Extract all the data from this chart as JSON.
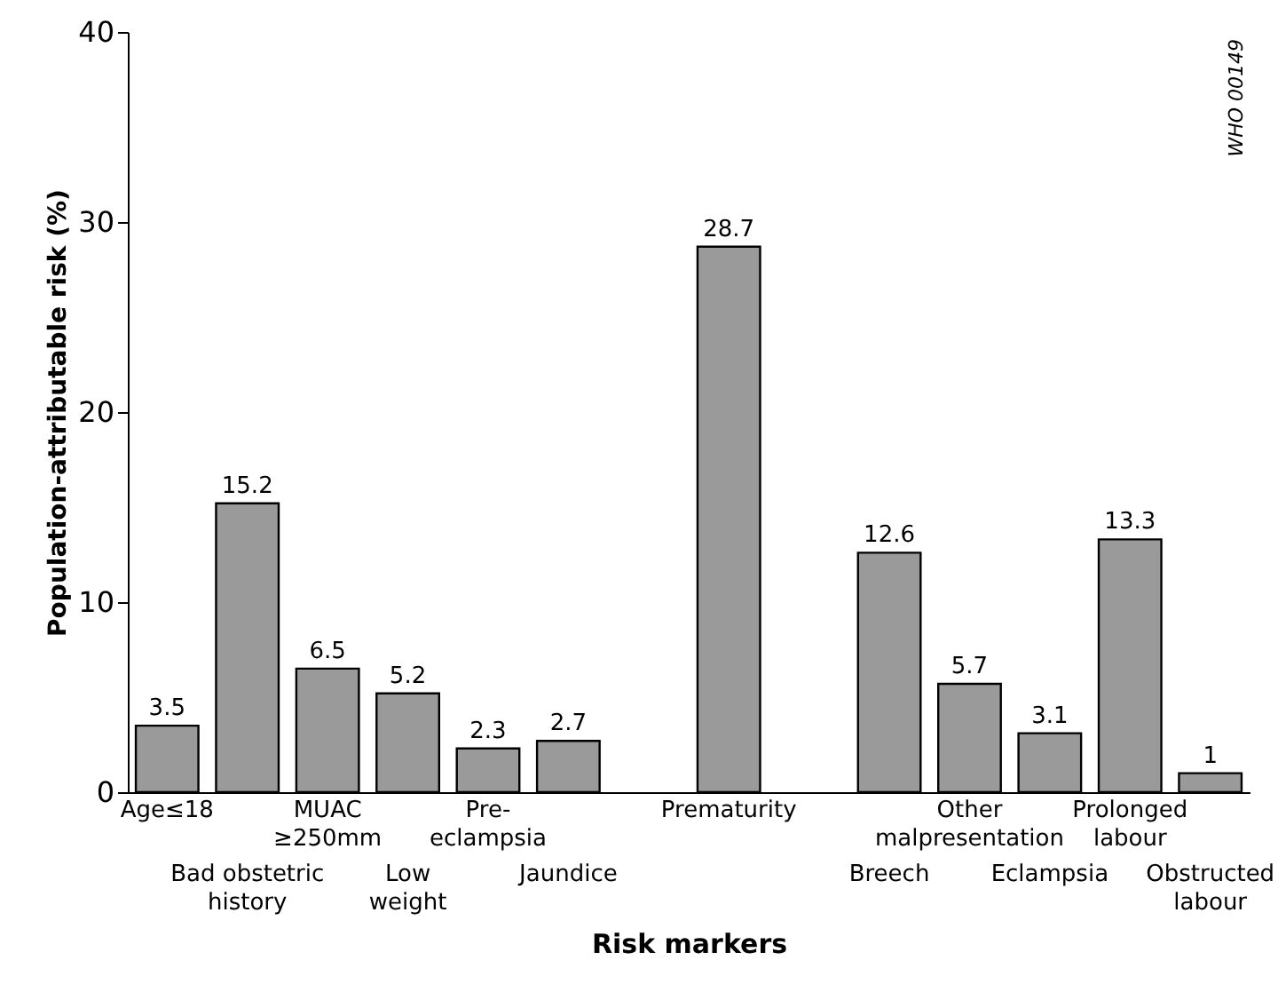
{
  "chart_data": {
    "type": "bar",
    "xlabel": "Risk markers",
    "ylabel": "Population-attributable risk (%)",
    "categories": [
      "Age≤18",
      "Bad obstetric\nhistory",
      "MUAC\n≥250mm",
      "Low\nweight",
      "Pre-\neclampsia",
      "Jaundice",
      null,
      "Prematurity",
      null,
      "Breech",
      "Other\nmalpresentation",
      "Eclampsia",
      "Prolonged\nlabour",
      "Obstructed\nlabour"
    ],
    "values": [
      3.5,
      15.2,
      6.5,
      5.2,
      2.3,
      2.7,
      null,
      28.7,
      null,
      12.6,
      5.7,
      3.1,
      13.3,
      1
    ],
    "color": "#9a9a9a",
    "data_labels": true,
    "ylim": [
      0,
      40
    ],
    "yticks": [
      0,
      10,
      20,
      30,
      40
    ],
    "grid": false,
    "annotations": [
      "WHO 00149"
    ]
  }
}
